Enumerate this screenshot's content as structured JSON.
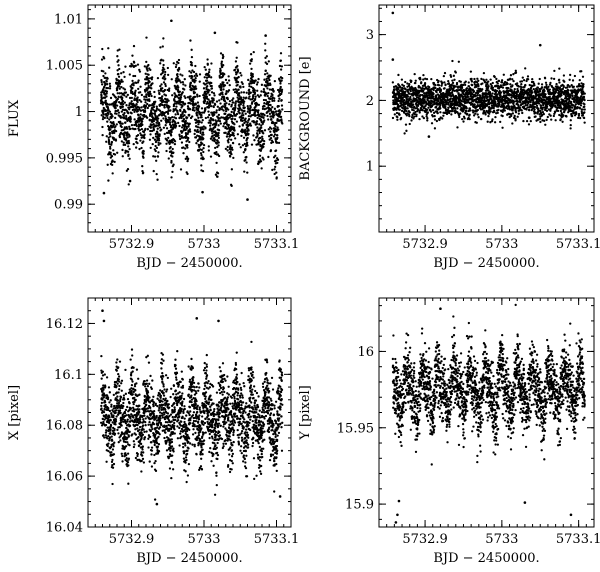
{
  "chart_data": [
    {
      "id": "flux",
      "type": "scatter",
      "xlabel": "BJD − 2450000.",
      "ylabel": "FLUX",
      "xlim": [
        5732.84,
        5733.12
      ],
      "ylim": [
        0.987,
        1.0115
      ],
      "x_major_ticks": [
        5732.9,
        5733.0,
        5733.1
      ],
      "x_tick_labels": [
        "5732.9",
        "5733",
        "5733.1"
      ],
      "x_minor_step": 0.01,
      "y_major_ticks": [
        0.99,
        0.995,
        1.0,
        1.005,
        1.01
      ],
      "y_tick_labels": [
        "0.99",
        "0.995",
        "1",
        "1.005",
        "1.01"
      ],
      "y_minor_step": 0.001,
      "grid": false,
      "series": [
        {
          "mean": 1.0,
          "amplitude": 0.0032,
          "period": 0.0205,
          "phase": 0.3,
          "scatter": 0.0021,
          "n_points": 2400,
          "x_range": [
            5732.858,
            5733.108
          ],
          "outliers": [
            [
              5732.862,
              0.9912
            ],
            [
              5732.898,
              0.9925
            ],
            [
              5732.998,
              0.9913
            ],
            [
              5733.06,
              0.9905
            ],
            [
              5732.955,
              1.0098
            ],
            [
              5733.015,
              1.0085
            ],
            [
              5733.085,
              1.0082
            ]
          ]
        }
      ]
    },
    {
      "id": "background",
      "type": "scatter",
      "xlabel": "BJD − 2450000.",
      "ylabel": "BACKGROUND [e]",
      "xlim": [
        5732.84,
        5733.12
      ],
      "ylim": [
        0.0,
        3.45
      ],
      "x_major_ticks": [
        5732.9,
        5733.0,
        5733.1
      ],
      "x_tick_labels": [
        "5732.9",
        "5733",
        "5733.1"
      ],
      "x_minor_step": 0.01,
      "y_major_ticks": [
        1,
        2,
        3
      ],
      "y_tick_labels": [
        "1",
        "2",
        "3"
      ],
      "y_minor_step": 0.2,
      "grid": false,
      "series": [
        {
          "mean": 2.03,
          "amplitude": 0.0,
          "period": 0.02,
          "phase": 0.0,
          "scatter": 0.15,
          "n_points": 2400,
          "x_range": [
            5732.858,
            5733.108
          ],
          "outliers": [
            [
              5732.858,
              3.33
            ],
            [
              5732.858,
              2.62
            ],
            [
              5733.05,
              2.84
            ],
            [
              5732.905,
              1.45
            ]
          ]
        }
      ]
    },
    {
      "id": "x-pixel",
      "type": "scatter",
      "xlabel": "BJD − 2450000.",
      "ylabel": "X [pixel]",
      "xlim": [
        5732.84,
        5733.12
      ],
      "ylim": [
        16.04,
        16.13
      ],
      "x_major_ticks": [
        5732.9,
        5733.0,
        5733.1
      ],
      "x_tick_labels": [
        "5732.9",
        "5733",
        "5733.1"
      ],
      "x_minor_step": 0.01,
      "y_major_ticks": [
        16.04,
        16.06,
        16.08,
        16.1,
        16.12
      ],
      "y_tick_labels": [
        "16.04",
        "16.06",
        "16.08",
        "16.1",
        "16.12"
      ],
      "y_minor_step": 0.005,
      "grid": false,
      "series": [
        {
          "mean": 16.083,
          "amplitude": 0.011,
          "period": 0.0205,
          "phase": 0.6,
          "scatter": 0.0075,
          "n_points": 2400,
          "x_range": [
            5732.858,
            5733.108
          ],
          "outliers": [
            [
              5732.86,
              16.125
            ],
            [
              5732.862,
              16.121
            ],
            [
              5732.99,
              16.122
            ],
            [
              5733.02,
              16.121
            ],
            [
              5732.935,
              16.049
            ],
            [
              5733.105,
              16.052
            ]
          ]
        }
      ]
    },
    {
      "id": "y-pixel",
      "type": "scatter",
      "xlabel": "BJD − 2450000.",
      "ylabel": "Y [pixel]",
      "xlim": [
        5732.84,
        5733.12
      ],
      "ylim": [
        15.885,
        16.035
      ],
      "x_major_ticks": [
        5732.9,
        5733.0,
        5733.1
      ],
      "x_tick_labels": [
        "5732.9",
        "5733",
        "5733.1"
      ],
      "x_minor_step": 0.01,
      "y_major_ticks": [
        15.9,
        15.95,
        16.0
      ],
      "y_tick_labels": [
        "15.9",
        "15.95",
        "16"
      ],
      "y_minor_step": 0.01,
      "grid": false,
      "series": [
        {
          "mean": 15.975,
          "amplitude": 0.018,
          "period": 0.0205,
          "phase": 1.9,
          "scatter": 0.0115,
          "n_points": 2400,
          "x_range": [
            5732.858,
            5733.108
          ],
          "outliers": [
            [
              5732.862,
              15.888
            ],
            [
              5732.864,
              15.893
            ],
            [
              5732.866,
              15.902
            ],
            [
              5732.92,
              16.028
            ],
            [
              5733.03,
              15.901
            ],
            [
              5733.09,
              15.893
            ]
          ]
        }
      ]
    }
  ]
}
